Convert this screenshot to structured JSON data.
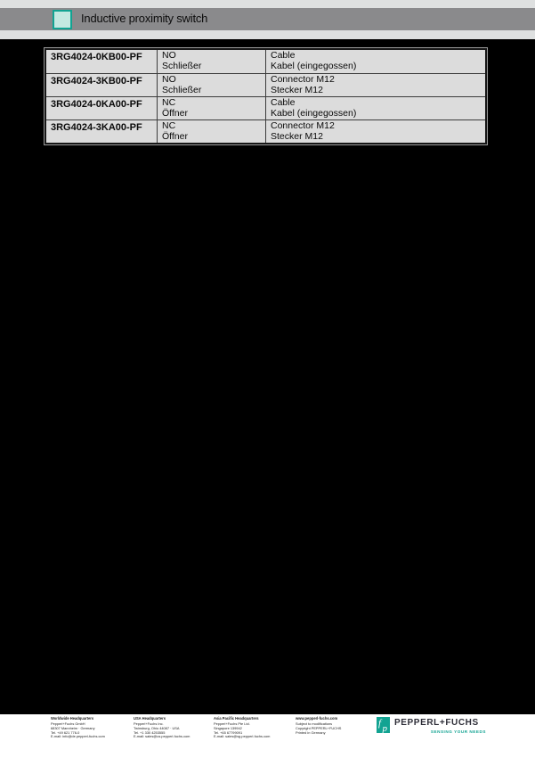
{
  "header": {
    "title": "Inductive proximity switch"
  },
  "table": {
    "rows": [
      {
        "part_number": "3RG4024-0KB00-PF",
        "function_en": "NO",
        "function_de": "Schließer",
        "connection_en": "Cable",
        "connection_de": "Kabel (eingegossen)"
      },
      {
        "part_number": "3RG4024-3KB00-PF",
        "function_en": "NO",
        "function_de": "Schließer",
        "connection_en": "Connector M12",
        "connection_de": "Stecker M12"
      },
      {
        "part_number": "3RG4024-0KA00-PF",
        "function_en": "NC",
        "function_de": "Öffner",
        "connection_en": "Cable",
        "connection_de": "Kabel (eingegossen)"
      },
      {
        "part_number": "3RG4024-3KA00-PF",
        "function_en": "NC",
        "function_de": "Öffner",
        "connection_en": "Connector M12",
        "connection_de": "Stecker M12"
      }
    ]
  },
  "footer": {
    "columns": [
      {
        "header": "Worldwide Headquarters",
        "lines": [
          "Pepperl+Fuchs GmbH",
          "68307 Mannheim · Germany",
          "Tel. +49 621 776-0",
          "E-mail: info@de.pepperl-fuchs.com"
        ]
      },
      {
        "header": "USA Headquarters",
        "lines": [
          "Pepperl+Fuchs Inc.",
          "Twinsburg, Ohio 44087 · USA",
          "Tel. +1 330 4253555",
          "E-mail: sales@us.pepperl-fuchs.com"
        ]
      },
      {
        "header": "Asia Pacific Headquarters",
        "lines": [
          "Pepperl+Fuchs Pte Ltd.",
          "Singapore 139942",
          "Tel. +65 67799091",
          "E-mail: sales@sg.pepperl-fuchs.com"
        ]
      },
      {
        "header": "www.pepperl-fuchs.com",
        "lines": [
          "Subject to modifications",
          "Copyright PEPPERL+FUCHS",
          "Printed in Germany"
        ]
      }
    ],
    "logo": {
      "wordmark": "PEPPERL+FUCHS",
      "tagline": "SENSING YOUR NEEDS"
    }
  },
  "colors": {
    "accent_teal": "#12a392",
    "marker_fill": "#c4e9e1",
    "bar_gray": "#8a8a8c",
    "page_gray": "#dee0e0",
    "table_bg": "#dcdcdc",
    "scan_black": "#000000"
  }
}
